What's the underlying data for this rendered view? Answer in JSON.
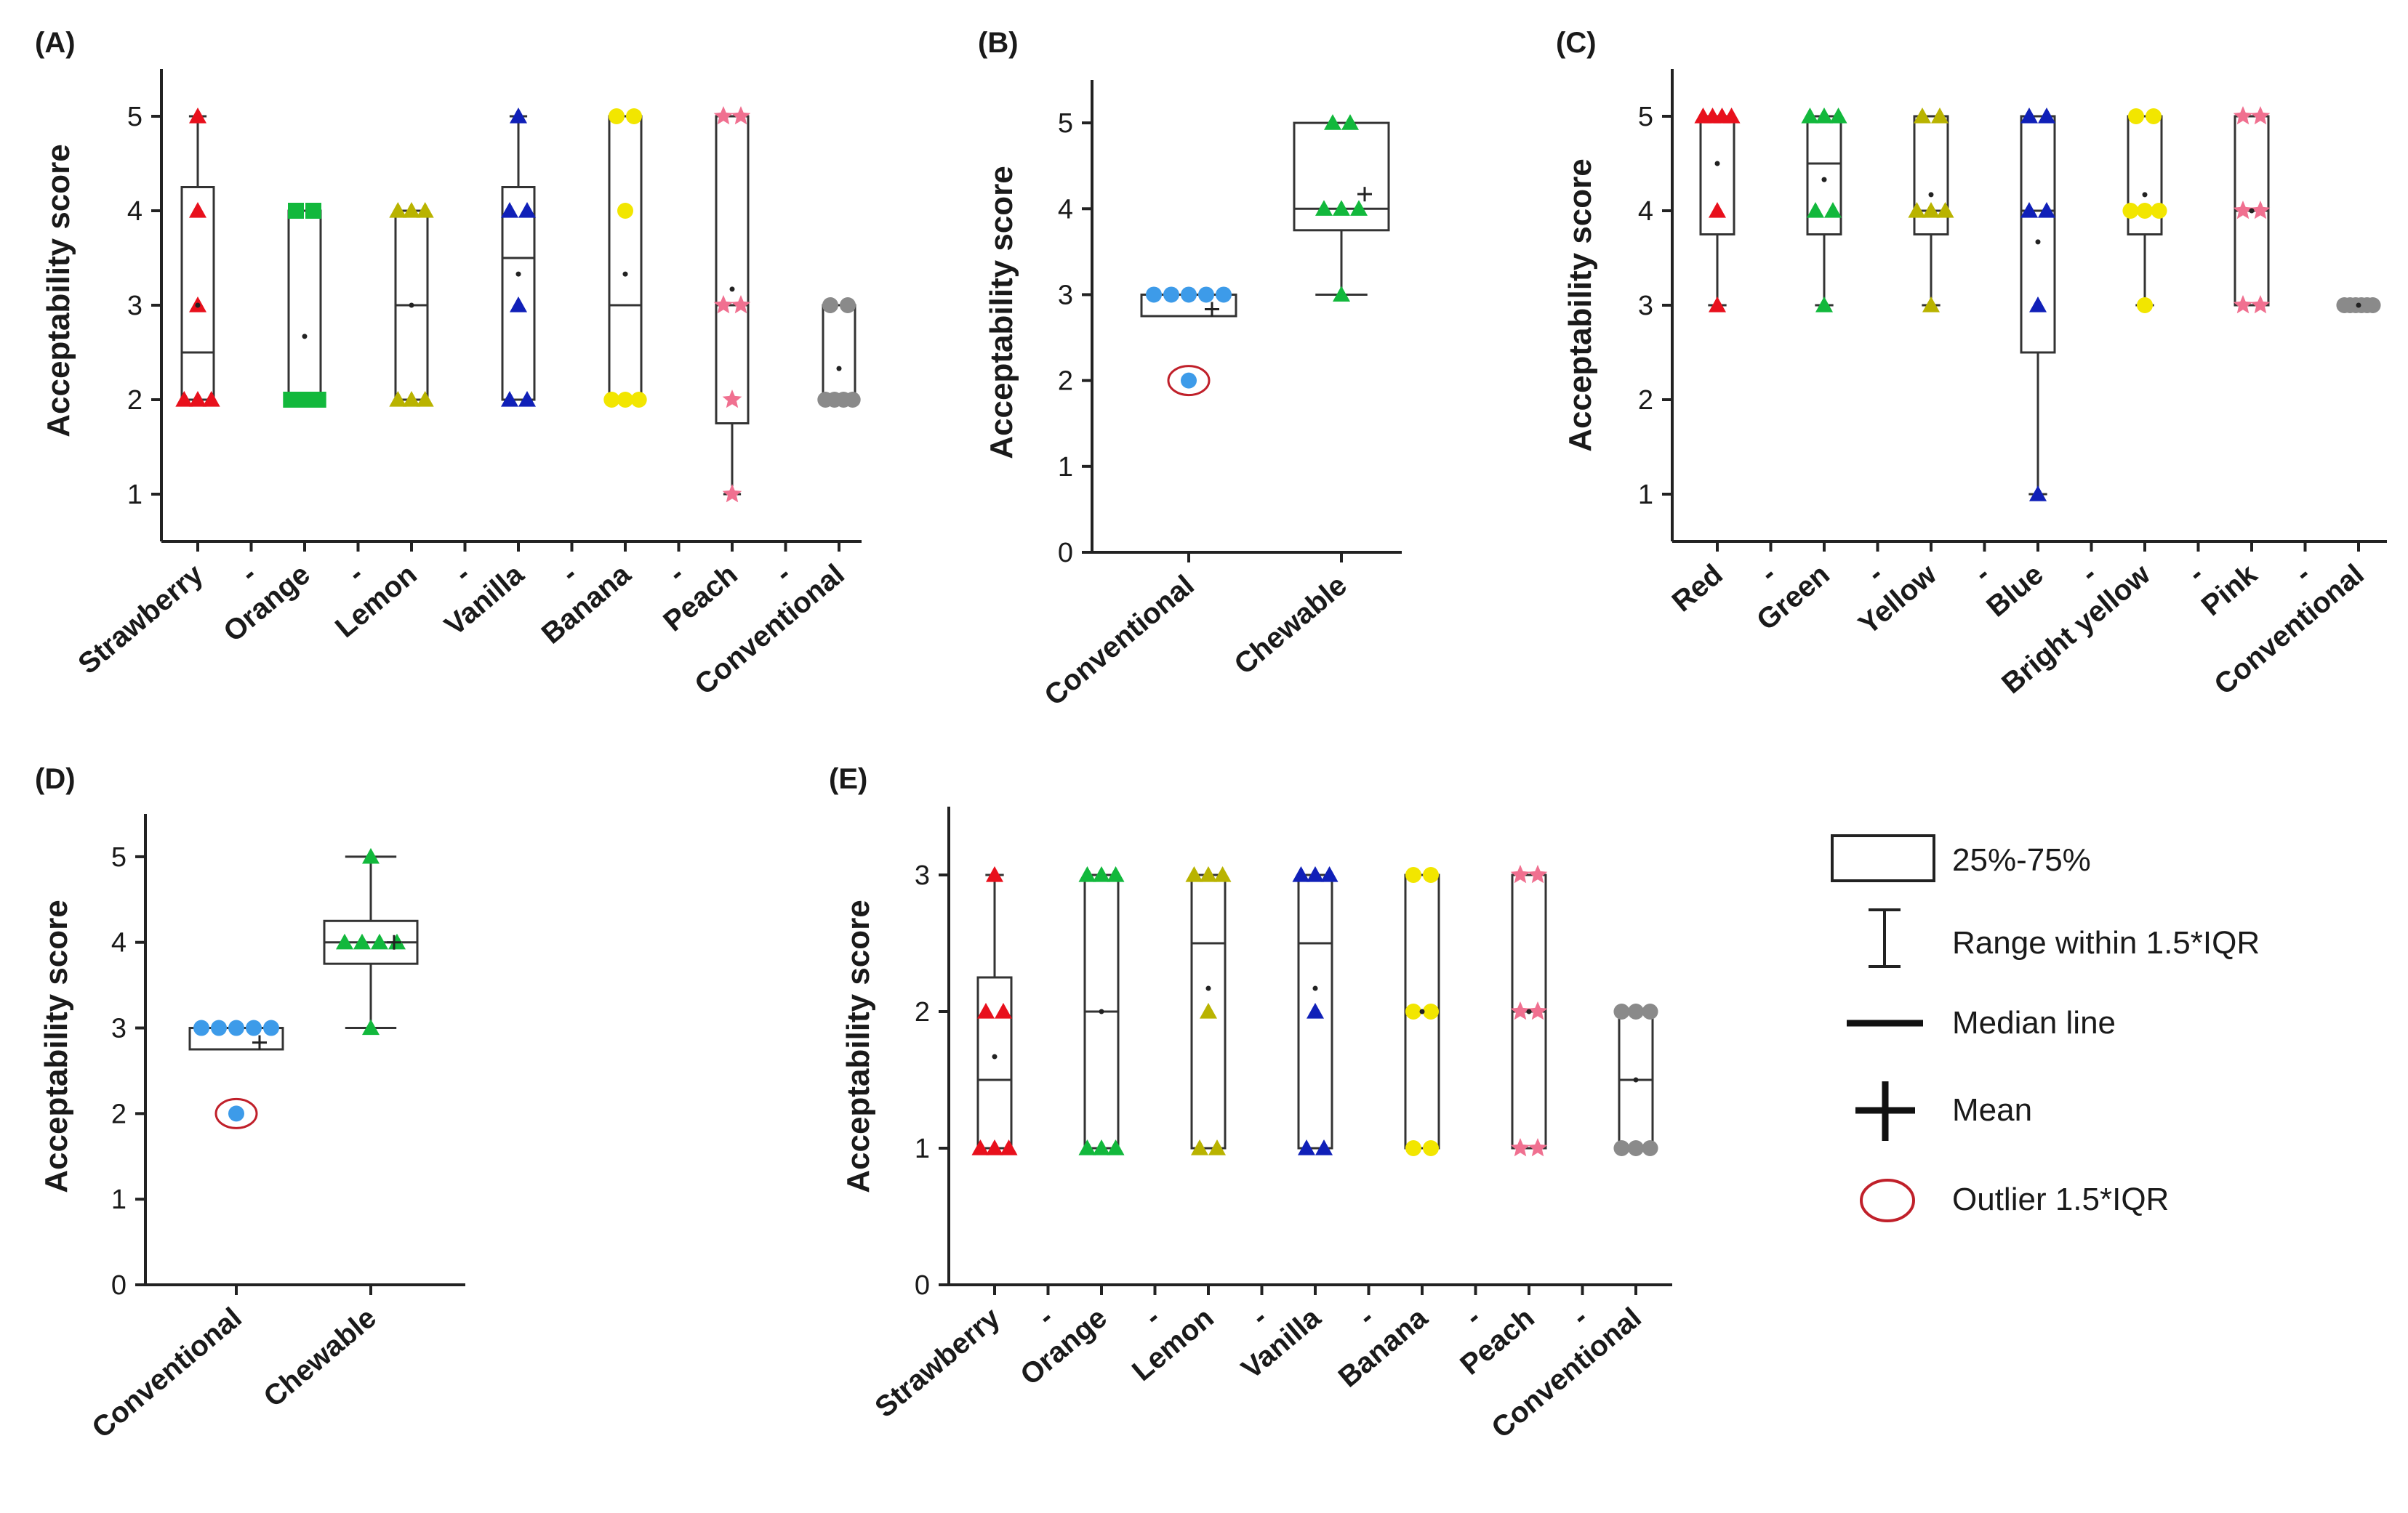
{
  "colors": {
    "Strawberry": "#e8101c",
    "Orange": "#12b83c",
    "Lemon": "#b9b300",
    "Vanilla": "#1020b8",
    "Banana": "#f2e600",
    "Peach": "#f07090",
    "Conventional": "#8a8a8a",
    "Red": "#e8101c",
    "Green": "#12b83c",
    "Yellow": "#b9b300",
    "Blue": "#1020b8",
    "Bright yellow": "#f2e600",
    "Pink": "#f07090",
    "ConvBlue": "#3d9be9",
    "Chewable": "#12b83c",
    "outlier": "#c0202a"
  },
  "chart_data": [
    {
      "id": "A",
      "panel_label": "(A)",
      "type": "box",
      "ylabel": "Acceptability score",
      "ylim": [
        0.5,
        5.5
      ],
      "yticks": [
        "1",
        "2",
        "3",
        "4",
        "5"
      ],
      "categories": [
        "Strawberry",
        "-",
        "Orange",
        "-",
        "Lemon",
        "-",
        "Vanilla",
        "-",
        "Banana",
        "-",
        "Peach",
        "-",
        "Conventional"
      ],
      "boxes": [
        {
          "cat": "Strawberry",
          "q1": 2,
          "median": 2.5,
          "q3": 4.25,
          "whisker_low": 2,
          "whisker_high": 5,
          "mean": 3.0,
          "points": [
            2,
            2,
            2,
            3,
            4,
            5
          ],
          "marker": "triangle"
        },
        {
          "cat": "Orange",
          "q1": 2,
          "median": 2,
          "q3": 4,
          "whisker_low": 2,
          "whisker_high": 4,
          "mean": 2.67,
          "points": [
            2,
            2,
            2,
            2,
            4,
            4
          ],
          "marker": "square"
        },
        {
          "cat": "Lemon",
          "q1": 2,
          "median": 3,
          "q3": 4,
          "whisker_low": 2,
          "whisker_high": 4,
          "mean": 3.0,
          "points": [
            2,
            2,
            2,
            4,
            4,
            4
          ],
          "marker": "triangle"
        },
        {
          "cat": "Vanilla",
          "q1": 2,
          "median": 3.5,
          "q3": 4.25,
          "whisker_low": 2,
          "whisker_high": 5,
          "mean": 3.33,
          "points": [
            2,
            2,
            3,
            4,
            4,
            5
          ],
          "marker": "triangle"
        },
        {
          "cat": "Banana",
          "q1": 2,
          "median": 3,
          "q3": 5,
          "whisker_low": 2,
          "whisker_high": 5,
          "mean": 3.33,
          "points": [
            2,
            2,
            2,
            4,
            5,
            5
          ],
          "marker": "circle"
        },
        {
          "cat": "Peach",
          "q1": 1.75,
          "median": 3,
          "q3": 5,
          "whisker_low": 1,
          "whisker_high": 5,
          "mean": 3.17,
          "points": [
            1,
            2,
            3,
            3,
            5,
            5
          ],
          "marker": "star"
        },
        {
          "cat": "Conventional",
          "q1": 2,
          "median": 2,
          "q3": 3,
          "whisker_low": 2,
          "whisker_high": 3,
          "mean": 2.33,
          "points": [
            2,
            2,
            2,
            2,
            3,
            3
          ],
          "marker": "circle"
        }
      ]
    },
    {
      "id": "B",
      "panel_label": "(B)",
      "type": "box",
      "ylabel": "Acceptability score",
      "ylim": [
        0,
        5.5
      ],
      "yticks": [
        "0",
        "1",
        "2",
        "3",
        "4",
        "5"
      ],
      "categories": [
        "Conventional",
        "Chewable"
      ],
      "boxes": [
        {
          "cat": "Conventional",
          "q1": 2.75,
          "median": 3,
          "q3": 3,
          "whisker_low": 2.75,
          "whisker_high": 3,
          "mean": 2.83,
          "points": [
            3,
            3,
            3,
            3,
            3
          ],
          "outliers": [
            2
          ],
          "marker": "circle",
          "color_key": "ConvBlue"
        },
        {
          "cat": "Chewable",
          "q1": 3.75,
          "median": 4,
          "q3": 5,
          "whisker_low": 3,
          "whisker_high": 5,
          "mean": 4.17,
          "points": [
            3,
            4,
            4,
            4,
            5,
            5
          ],
          "marker": "triangle"
        }
      ]
    },
    {
      "id": "C",
      "panel_label": "(C)",
      "type": "box",
      "ylabel": "Acceptability score",
      "ylim": [
        0.5,
        5.5
      ],
      "yticks": [
        "1",
        "2",
        "3",
        "4",
        "5"
      ],
      "categories": [
        "Red",
        "-",
        "Green",
        "-",
        "Yellow",
        "-",
        "Blue",
        "-",
        "Bright yellow",
        "-",
        "Pink",
        "-",
        "Conventional"
      ],
      "boxes": [
        {
          "cat": "Red",
          "q1": 3.75,
          "median": 5,
          "q3": 5,
          "whisker_low": 3,
          "whisker_high": 5,
          "mean": 4.5,
          "points": [
            3,
            4,
            5,
            5,
            5,
            5
          ],
          "marker": "triangle"
        },
        {
          "cat": "Green",
          "q1": 3.75,
          "median": 4.5,
          "q3": 5,
          "whisker_low": 3,
          "whisker_high": 5,
          "mean": 4.33,
          "points": [
            3,
            4,
            4,
            5,
            5,
            5
          ],
          "marker": "triangle"
        },
        {
          "cat": "Yellow",
          "q1": 3.75,
          "median": 4,
          "q3": 5,
          "whisker_low": 3,
          "whisker_high": 5,
          "mean": 4.17,
          "points": [
            3,
            4,
            4,
            4,
            5,
            5
          ],
          "marker": "triangle"
        },
        {
          "cat": "Blue",
          "q1": 2.5,
          "median": 4,
          "q3": 5,
          "whisker_low": 1,
          "whisker_high": 5,
          "mean": 3.67,
          "points": [
            1,
            3,
            4,
            4,
            5,
            5
          ],
          "marker": "triangle"
        },
        {
          "cat": "Bright yellow",
          "q1": 3.75,
          "median": 4,
          "q3": 5,
          "whisker_low": 3,
          "whisker_high": 5,
          "mean": 4.17,
          "points": [
            3,
            4,
            4,
            4,
            5,
            5
          ],
          "marker": "circle"
        },
        {
          "cat": "Pink",
          "q1": 3,
          "median": 4,
          "q3": 5,
          "whisker_low": 3,
          "whisker_high": 5,
          "mean": 4.0,
          "points": [
            3,
            3,
            4,
            4,
            5,
            5
          ],
          "marker": "star"
        },
        {
          "cat": "Conventional",
          "q1": 3,
          "median": 3,
          "q3": 3,
          "whisker_low": 3,
          "whisker_high": 3,
          "mean": 3.0,
          "points": [
            3,
            3,
            3,
            3,
            3,
            3
          ],
          "marker": "circle"
        }
      ]
    },
    {
      "id": "D",
      "panel_label": "(D)",
      "type": "box",
      "ylabel": "Acceptability score",
      "ylim": [
        0,
        5.5
      ],
      "yticks": [
        "0",
        "1",
        "2",
        "3",
        "4",
        "5"
      ],
      "categories": [
        "Conventional",
        "Chewable"
      ],
      "boxes": [
        {
          "cat": "Conventional",
          "q1": 2.75,
          "median": 3,
          "q3": 3,
          "whisker_low": 2.75,
          "whisker_high": 3,
          "mean": 2.83,
          "points": [
            3,
            3,
            3,
            3,
            3
          ],
          "outliers": [
            2
          ],
          "marker": "circle",
          "color_key": "ConvBlue"
        },
        {
          "cat": "Chewable",
          "q1": 3.75,
          "median": 4,
          "q3": 4.25,
          "whisker_low": 3,
          "whisker_high": 5,
          "mean": 4.0,
          "points": [
            3,
            4,
            4,
            4,
            4,
            5
          ],
          "marker": "triangle"
        }
      ]
    },
    {
      "id": "E",
      "panel_label": "(E)",
      "type": "box",
      "ylabel": "Acceptability score",
      "ylim": [
        0,
        3.5
      ],
      "yticks": [
        "0",
        "1",
        "2",
        "3"
      ],
      "categories": [
        "Strawberry",
        "-",
        "Orange",
        "-",
        "Lemon",
        "-",
        "Vanilla",
        "-",
        "Banana",
        "-",
        "Peach",
        "-",
        "Conventional"
      ],
      "boxes": [
        {
          "cat": "Strawberry",
          "q1": 1,
          "median": 1.5,
          "q3": 2.25,
          "whisker_low": 1,
          "whisker_high": 3,
          "mean": 1.67,
          "points": [
            1,
            1,
            1,
            2,
            2,
            3
          ],
          "marker": "triangle"
        },
        {
          "cat": "Orange",
          "q1": 1,
          "median": 2,
          "q3": 3,
          "whisker_low": 1,
          "whisker_high": 3,
          "mean": 2.0,
          "points": [
            1,
            1,
            1,
            3,
            3,
            3
          ],
          "marker": "triangle"
        },
        {
          "cat": "Lemon",
          "q1": 1,
          "median": 2.5,
          "q3": 3,
          "whisker_low": 1,
          "whisker_high": 3,
          "mean": 2.17,
          "points": [
            1,
            1,
            2,
            3,
            3,
            3
          ],
          "marker": "triangle"
        },
        {
          "cat": "Vanilla",
          "q1": 1,
          "median": 2.5,
          "q3": 3,
          "whisker_low": 1,
          "whisker_high": 3,
          "mean": 2.17,
          "points": [
            1,
            1,
            2,
            3,
            3,
            3
          ],
          "marker": "triangle"
        },
        {
          "cat": "Banana",
          "q1": 1,
          "median": 2,
          "q3": 3,
          "whisker_low": 1,
          "whisker_high": 3,
          "mean": 2.0,
          "points": [
            1,
            1,
            2,
            2,
            3,
            3
          ],
          "marker": "circle"
        },
        {
          "cat": "Peach",
          "q1": 1,
          "median": 2,
          "q3": 3,
          "whisker_low": 1,
          "whisker_high": 3,
          "mean": 2.0,
          "points": [
            1,
            1,
            2,
            2,
            3,
            3
          ],
          "marker": "star"
        },
        {
          "cat": "Conventional",
          "q1": 1,
          "median": 1.5,
          "q3": 2,
          "whisker_low": 1,
          "whisker_high": 2,
          "mean": 1.5,
          "points": [
            1,
            1,
            1,
            2,
            2,
            2
          ],
          "marker": "circle"
        }
      ]
    }
  ],
  "legend": {
    "items": [
      {
        "key": "box",
        "label": "25%-75%"
      },
      {
        "key": "range",
        "label": "Range within 1.5*IQR"
      },
      {
        "key": "median",
        "label": "Median line"
      },
      {
        "key": "mean",
        "label": "Mean"
      },
      {
        "key": "outlier",
        "label": "Outlier 1.5*IQR"
      }
    ]
  }
}
